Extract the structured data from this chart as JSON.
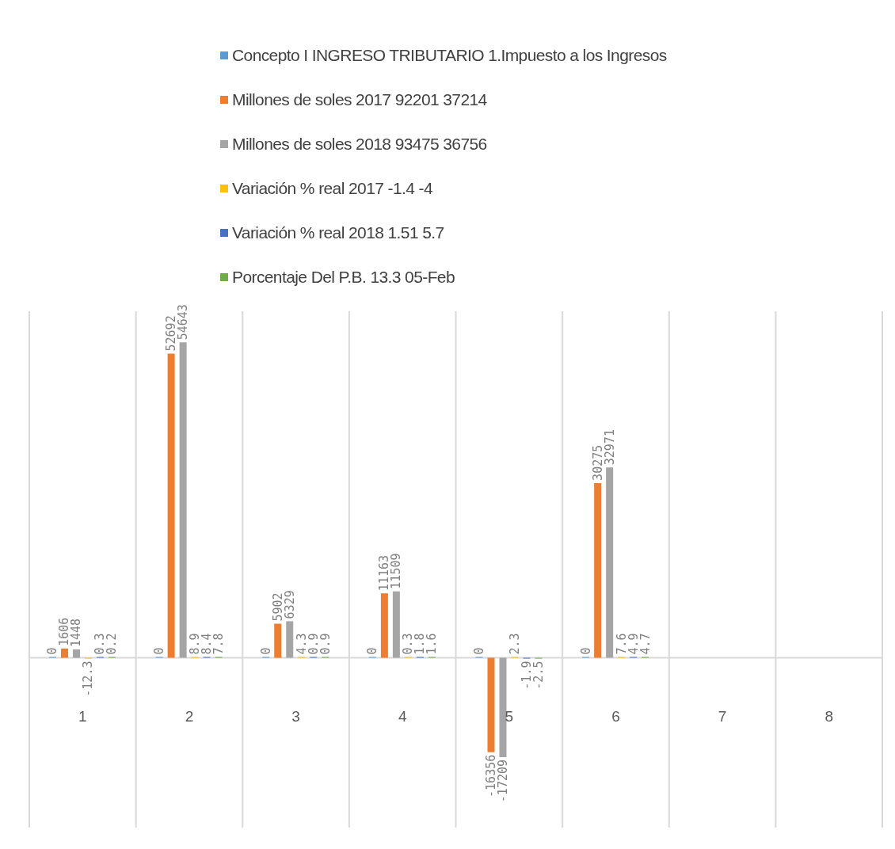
{
  "chart_data": {
    "type": "bar",
    "categories": [
      "1",
      "2",
      "3",
      "4",
      "5",
      "6",
      "7",
      "8"
    ],
    "series": [
      {
        "name": "Concepto I INGRESO TRIBUTARIO 1.Impuesto a los Ingresos",
        "color": "#5b9bd5",
        "values": [
          0,
          0,
          0,
          0,
          0,
          0,
          null,
          null
        ]
      },
      {
        "name": "Millones de soles 2017 92201 37214",
        "color": "#ed7d31",
        "values": [
          1606,
          52692,
          5902,
          11163,
          -16356,
          30275,
          null,
          null
        ]
      },
      {
        "name": "Millones de soles 2018 93475 36756",
        "color": "#a5a5a5",
        "values": [
          1448,
          54643,
          6329,
          11509,
          -17209,
          32971,
          null,
          null
        ]
      },
      {
        "name": "Variación % real 2017 -1.4 -4",
        "color": "#ffc000",
        "values": [
          -12.3,
          8.9,
          4.3,
          0.3,
          2.3,
          7.6,
          null,
          null
        ]
      },
      {
        "name": "Variación % real 2018 1.51 5.7",
        "color": "#4472c4",
        "values": [
          0.3,
          8.4,
          0.9,
          1.8,
          -1.9,
          4.9,
          null,
          null
        ]
      },
      {
        "name": "Porcentaje Del P.B. 13.3 05-Feb",
        "color": "#70ad47",
        "values": [
          0.2,
          7.8,
          0.9,
          1.6,
          -2.5,
          4.7,
          null,
          null
        ]
      }
    ],
    "data_labels": true,
    "grid": "x",
    "legend": "top"
  }
}
